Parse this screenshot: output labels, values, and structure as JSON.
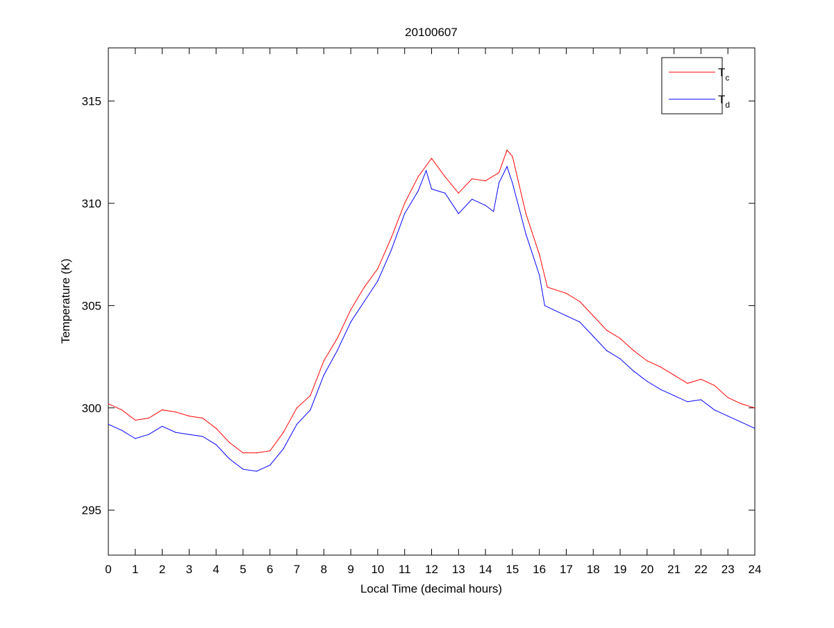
{
  "chart_data": {
    "type": "line",
    "title": "20100607",
    "xlabel": "Local Time (decimal hours)",
    "ylabel": "Temperature (K)",
    "xlim": [
      0,
      24
    ],
    "ylim": [
      292.8,
      317.6
    ],
    "xticks": [
      0,
      1,
      2,
      3,
      4,
      5,
      6,
      7,
      8,
      9,
      10,
      11,
      12,
      13,
      14,
      15,
      16,
      17,
      18,
      19,
      20,
      21,
      22,
      23,
      24
    ],
    "yticks": [
      295,
      300,
      305,
      310,
      315
    ],
    "grid": false,
    "legend_position": "top-right",
    "series": [
      {
        "name": "T",
        "subscript": "c",
        "color": "#ff0000",
        "x": [
          0,
          0.5,
          1,
          1.5,
          2,
          2.5,
          3,
          3.5,
          4,
          4.5,
          5,
          5.5,
          6,
          6.5,
          7,
          7.5,
          8,
          8.5,
          9,
          9.5,
          10,
          10.5,
          11,
          11.5,
          12,
          12.5,
          13,
          13.5,
          14,
          14.5,
          14.8,
          15,
          15.5,
          16,
          16.3,
          17,
          17.5,
          18,
          18.5,
          19,
          19.5,
          20,
          20.5,
          21,
          21.5,
          22,
          22.5,
          23,
          23.5,
          24
        ],
        "y": [
          300.2,
          299.9,
          299.4,
          299.5,
          299.9,
          299.8,
          299.6,
          299.5,
          299.0,
          298.3,
          297.8,
          297.8,
          297.9,
          298.8,
          300.0,
          300.6,
          302.3,
          303.4,
          304.8,
          305.9,
          306.8,
          308.3,
          310.0,
          311.3,
          312.2,
          311.3,
          310.5,
          311.2,
          311.1,
          311.5,
          312.6,
          312.3,
          309.5,
          307.5,
          305.9,
          305.6,
          305.2,
          304.5,
          303.8,
          303.4,
          302.8,
          302.3,
          302.0,
          301.6,
          301.2,
          301.4,
          301.1,
          300.5,
          300.2,
          300.0
        ]
      },
      {
        "name": "T",
        "subscript": "d",
        "color": "#0000ff",
        "x": [
          0,
          0.5,
          1,
          1.5,
          2,
          2.5,
          3,
          3.5,
          4,
          4.5,
          5,
          5.5,
          6,
          6.5,
          7,
          7.5,
          8,
          8.5,
          9,
          9.5,
          10,
          10.5,
          11,
          11.5,
          11.8,
          12,
          12.5,
          13,
          13.5,
          14,
          14.3,
          14.5,
          14.8,
          15,
          15.5,
          16,
          16.2,
          17,
          17.5,
          18,
          18.5,
          19,
          19.5,
          20,
          20.5,
          21,
          21.5,
          22,
          22.5,
          23,
          23.5,
          24
        ],
        "y": [
          299.2,
          298.9,
          298.5,
          298.7,
          299.1,
          298.8,
          298.7,
          298.6,
          298.2,
          297.5,
          297.0,
          296.9,
          297.2,
          298.0,
          299.2,
          299.9,
          301.6,
          302.8,
          304.2,
          305.2,
          306.2,
          307.7,
          309.5,
          310.6,
          311.6,
          310.7,
          310.5,
          309.5,
          310.2,
          309.9,
          309.6,
          311.0,
          311.8,
          311.0,
          308.5,
          306.5,
          305.0,
          304.5,
          304.2,
          303.5,
          302.8,
          302.4,
          301.8,
          301.3,
          300.9,
          300.6,
          300.3,
          300.4,
          299.9,
          299.6,
          299.3,
          299.0
        ]
      }
    ]
  }
}
